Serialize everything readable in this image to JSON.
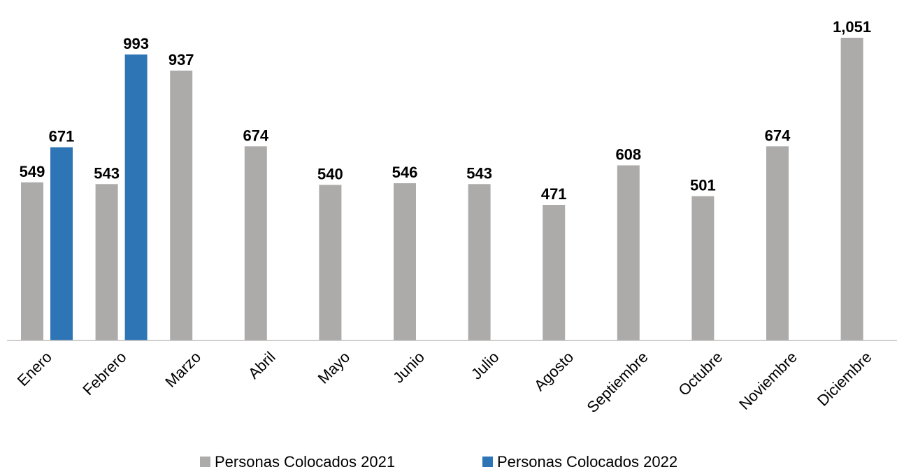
{
  "chart_data": {
    "type": "bar",
    "title": "",
    "xlabel": "",
    "ylabel": "",
    "ylim": [
      0,
      1051
    ],
    "grid": false,
    "legend_position": "bottom",
    "categories": [
      "Enero",
      "Febrero",
      "Marzo",
      "Abril",
      "Mayo",
      "Junio",
      "Julio",
      "Agosto",
      "Septiembre",
      "Octubre",
      "Noviembre",
      "Diciembre"
    ],
    "series": [
      {
        "name": "Personas Colocados 2021",
        "color": "#ADABAA",
        "values": [
          549,
          543,
          937,
          674,
          540,
          546,
          543,
          471,
          608,
          501,
          674,
          1051
        ],
        "labels": [
          "549",
          "543",
          "937",
          "674",
          "540",
          "546",
          "543",
          "471",
          "608",
          "501",
          "674",
          "1,051"
        ]
      },
      {
        "name": "Personas Colocados 2022",
        "color": "#2E75B6",
        "values": [
          671,
          993,
          null,
          null,
          null,
          null,
          null,
          null,
          null,
          null,
          null,
          null
        ],
        "labels": [
          "671",
          "993",
          "",
          "",
          "",
          "",
          "",
          "",
          "",
          "",
          "",
          ""
        ]
      }
    ]
  }
}
